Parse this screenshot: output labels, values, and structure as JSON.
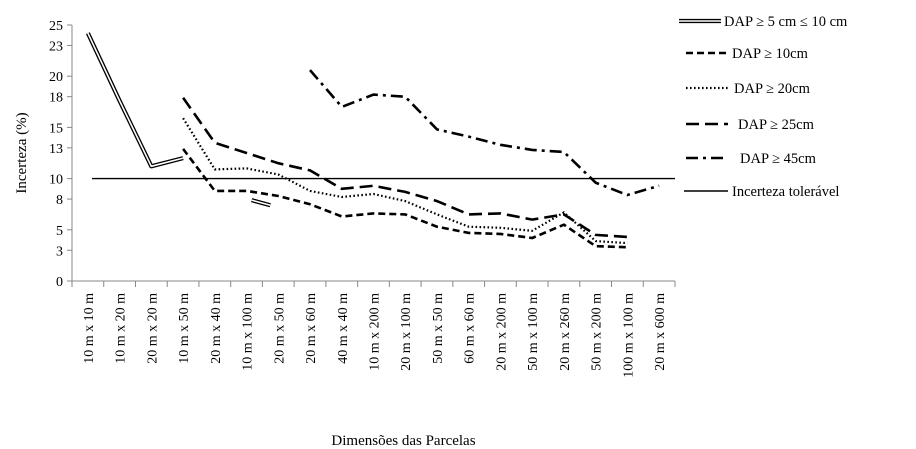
{
  "chart_data": {
    "type": "line",
    "xlabel": "Dimensões das Parcelas",
    "ylabel": "Incerteza (%)",
    "ylim": [
      0,
      25
    ],
    "yticks": [
      "0",
      "3",
      "5",
      "8",
      "10",
      "13",
      "15",
      "18",
      "20",
      "23",
      "25"
    ],
    "grid": false,
    "legend_position": "right",
    "categories": [
      "10 m x 10 m",
      "10 m x 20 m",
      "20 m x 20 m",
      "10 m x 50 m",
      "20 m x 40 m",
      "10 m x 100 m",
      "20 m x 50 m",
      "20 m x 60 m",
      "40 m x 40 m",
      "10 m x 200 m",
      "20 m x 100 m",
      "50 m x 50 m",
      "60 m x 60 m",
      "20 m x 200 m",
      "50 m x 100 m",
      "20 m x 260 m",
      "50 m x 200 m",
      "100 m x 100 m",
      "20 m x 600 m"
    ],
    "series": [
      {
        "name": "DAP ≥ 5 cm ≤ 10 cm",
        "style": "double",
        "values": [
          24.2,
          17.6,
          11.2,
          12.0,
          null,
          null,
          null,
          null,
          null,
          null,
          null,
          null,
          null,
          null,
          null,
          null,
          null,
          null,
          null
        ]
      },
      {
        "name": "DAP ≥ 10cm",
        "style": "dash",
        "values": [
          null,
          null,
          null,
          12.9,
          8.8,
          8.8,
          8.3,
          7.5,
          6.3,
          6.6,
          6.5,
          5.3,
          4.7,
          4.6,
          4.2,
          5.5,
          3.4,
          3.3,
          null
        ]
      },
      {
        "name": "DAP ≥ 20cm",
        "style": "dot",
        "values": [
          null,
          null,
          null,
          15.9,
          10.9,
          11.0,
          10.4,
          8.8,
          8.2,
          8.5,
          7.8,
          6.5,
          5.3,
          5.2,
          4.9,
          6.7,
          3.9,
          3.7,
          null
        ]
      },
      {
        "name": "DAP ≥ 25cm",
        "style": "longdash",
        "values": [
          null,
          null,
          null,
          17.9,
          13.5,
          12.5,
          11.5,
          10.8,
          9.0,
          9.3,
          8.7,
          7.8,
          6.5,
          6.6,
          6.0,
          6.5,
          4.5,
          4.3,
          null
        ]
      },
      {
        "name": "DAP ≥ 45cm",
        "style": "dashdot",
        "values": [
          null,
          null,
          null,
          null,
          null,
          null,
          null,
          20.6,
          17.0,
          18.2,
          18.0,
          14.8,
          14.1,
          13.3,
          12.8,
          12.6,
          9.6,
          8.4,
          9.3
        ]
      },
      {
        "name": "Incerteza tolerável",
        "style": "solid",
        "values": [
          10,
          10,
          10,
          10,
          10,
          10,
          10,
          10,
          10,
          10,
          10,
          10,
          10,
          10,
          10,
          10,
          10,
          10,
          10
        ]
      }
    ],
    "extra_segment": {
      "style": "double",
      "from": [
        5,
        7.9
      ],
      "to": [
        6,
        7.4
      ]
    },
    "colors": {
      "line": "#000000",
      "double_fill": "#ffffff",
      "axis": "#888888"
    }
  }
}
